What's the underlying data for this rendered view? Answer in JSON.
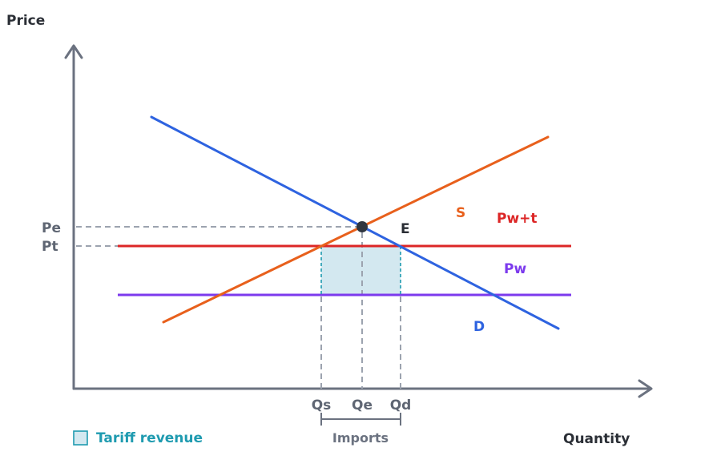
{
  "axes": {
    "y_label": "Price",
    "x_label": "Quantity"
  },
  "price_ticks": {
    "pe": "Pe",
    "pt": "Pt"
  },
  "quantity_ticks": {
    "qs": "Qs",
    "qe": "Qe",
    "qd": "Qd"
  },
  "curves": {
    "supply": "S",
    "demand": "D",
    "world_price_tariff": "Pw+t",
    "world_price": "Pw"
  },
  "equilibrium_label": "E",
  "imports_label": "Imports",
  "legend": {
    "tariff_revenue": "Tariff revenue"
  },
  "colors": {
    "axis": "#6b7280",
    "supply": "#e8601c",
    "demand": "#2e63e0",
    "world_price_tariff": "#dc2626",
    "world_price": "#7c3aed",
    "tariff_revenue_fill": "#d3e8f0",
    "tariff_revenue_edge": "#1f9bb0",
    "guide": "#9ca3af",
    "equilibrium_point": "#2f3640"
  }
}
